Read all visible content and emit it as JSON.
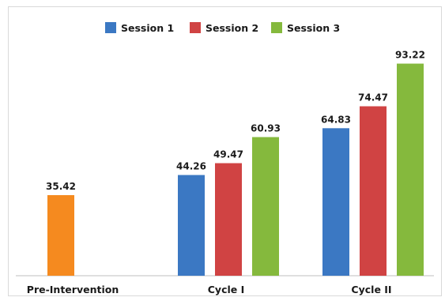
{
  "chart_data": {
    "type": "bar",
    "title": "",
    "xlabel": "",
    "ylabel": "",
    "ylim": [
      0,
      100
    ],
    "grid": false,
    "legend_position": "top",
    "categories": [
      "Pre-Intervention",
      "Cycle I",
      "Cycle II"
    ],
    "series": [
      {
        "name": "",
        "color": "#f58a1f",
        "values": [
          35.42,
          null,
          null
        ]
      },
      {
        "name": "Session 1",
        "color": "#3b78c3",
        "values": [
          null,
          44.26,
          64.83
        ]
      },
      {
        "name": "Session 2",
        "color": "#d04343",
        "values": [
          null,
          49.47,
          74.47
        ]
      },
      {
        "name": "Session 3",
        "color": "#85b93d",
        "values": [
          null,
          60.93,
          93.22
        ]
      }
    ],
    "value_labels": [
      "35.42",
      "44.26",
      "49.47",
      "60.93",
      "64.83",
      "74.47",
      "93.22"
    ]
  }
}
